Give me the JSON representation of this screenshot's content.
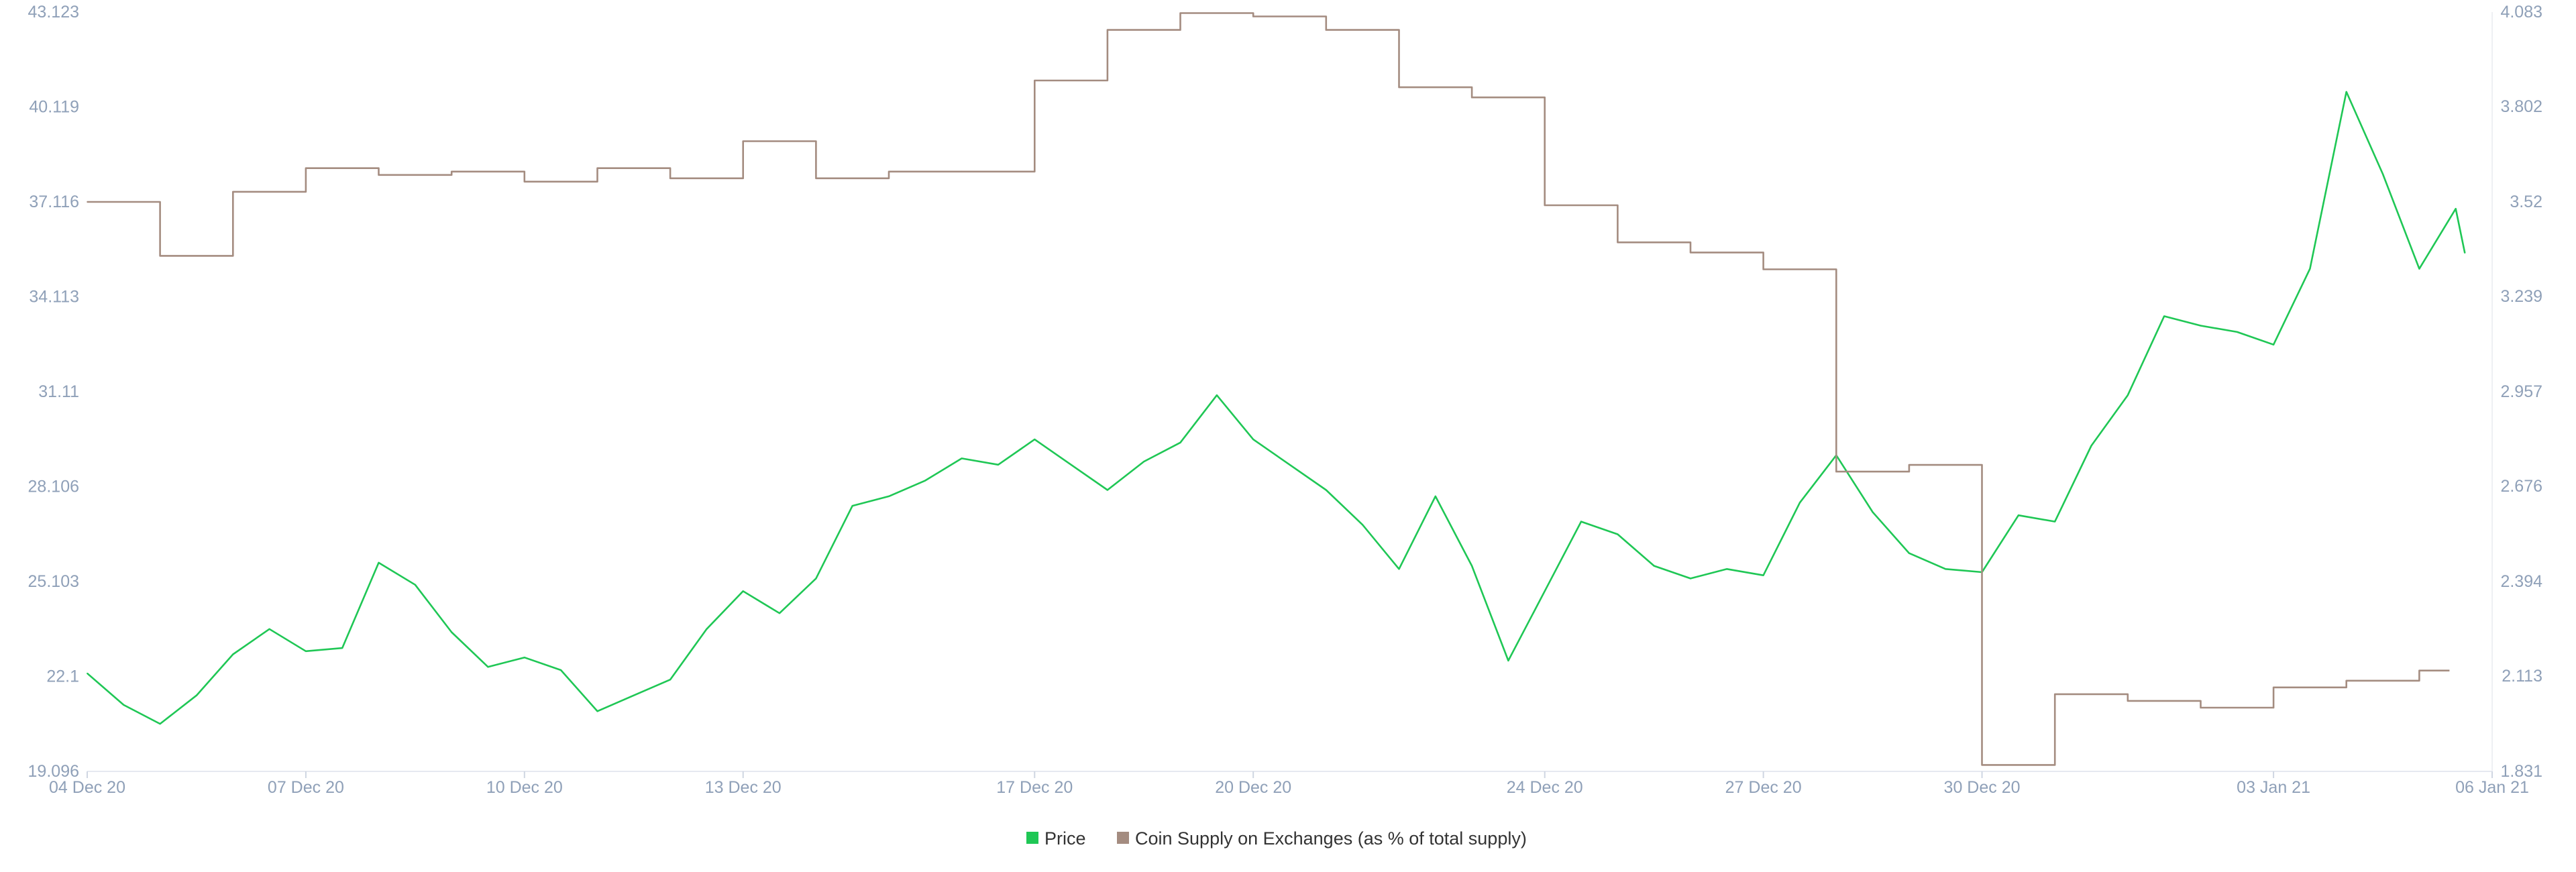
{
  "chart_data": {
    "type": "line",
    "title": "",
    "grid": false,
    "legend_position": "bottom-center",
    "x_axis": {
      "ticks": [
        "04 Dec 20",
        "07 Dec 20",
        "10 Dec 20",
        "13 Dec 20",
        "17 Dec 20",
        "20 Dec 20",
        "24 Dec 20",
        "27 Dec 20",
        "30 Dec 20",
        "03 Jan 21",
        "06 Jan 21"
      ],
      "range": [
        "2020-12-04",
        "2021-01-06"
      ]
    },
    "y_left": {
      "ticks": [
        "43.123",
        "40.119",
        "37.116",
        "34.113",
        "31.11",
        "28.106",
        "25.103",
        "22.1",
        "19.096"
      ],
      "range": [
        19.096,
        43.123
      ]
    },
    "y_right": {
      "ticks": [
        "4.083",
        "3.802",
        "3.52",
        "3.239",
        "2.957",
        "2.676",
        "2.394",
        "2.113",
        "1.831"
      ],
      "range": [
        1.831,
        4.083
      ]
    },
    "series": [
      {
        "name": "Price",
        "axis": "left",
        "color": "#1fc755",
        "points": [
          [
            "2020-12-04",
            22.2
          ],
          [
            "2020-12-04T12",
            21.2
          ],
          [
            "2020-12-05",
            20.6
          ],
          [
            "2020-12-05T12",
            21.5
          ],
          [
            "2020-12-06",
            22.8
          ],
          [
            "2020-12-06T12",
            23.6
          ],
          [
            "2020-12-07",
            22.9
          ],
          [
            "2020-12-07T12",
            23.0
          ],
          [
            "2020-12-08",
            25.7
          ],
          [
            "2020-12-08T12",
            25.0
          ],
          [
            "2020-12-09",
            23.5
          ],
          [
            "2020-12-09T12",
            22.4
          ],
          [
            "2020-12-10",
            22.7
          ],
          [
            "2020-12-10T12",
            22.3
          ],
          [
            "2020-12-11",
            21.0
          ],
          [
            "2020-12-11T12",
            21.5
          ],
          [
            "2020-12-12",
            22.0
          ],
          [
            "2020-12-12T12",
            23.6
          ],
          [
            "2020-12-13",
            24.8
          ],
          [
            "2020-12-13T12",
            24.1
          ],
          [
            "2020-12-14",
            25.2
          ],
          [
            "2020-12-14T12",
            27.5
          ],
          [
            "2020-12-15",
            27.8
          ],
          [
            "2020-12-15T12",
            28.3
          ],
          [
            "2020-12-16",
            29.0
          ],
          [
            "2020-12-16T12",
            28.8
          ],
          [
            "2020-12-17",
            29.6
          ],
          [
            "2020-12-17T12",
            28.8
          ],
          [
            "2020-12-18",
            28.0
          ],
          [
            "2020-12-18T12",
            28.9
          ],
          [
            "2020-12-19",
            29.5
          ],
          [
            "2020-12-19T12",
            31.0
          ],
          [
            "2020-12-20",
            29.6
          ],
          [
            "2020-12-20T12",
            28.8
          ],
          [
            "2020-12-21",
            28.0
          ],
          [
            "2020-12-21T12",
            26.9
          ],
          [
            "2020-12-22",
            25.5
          ],
          [
            "2020-12-22T12",
            27.8
          ],
          [
            "2020-12-23",
            25.6
          ],
          [
            "2020-12-23T12",
            22.6
          ],
          [
            "2020-12-24",
            24.8
          ],
          [
            "2020-12-24T12",
            27.0
          ],
          [
            "2020-12-25",
            26.6
          ],
          [
            "2020-12-25T12",
            25.6
          ],
          [
            "2020-12-26",
            25.2
          ],
          [
            "2020-12-26T12",
            25.5
          ],
          [
            "2020-12-27",
            25.3
          ],
          [
            "2020-12-27T12",
            27.6
          ],
          [
            "2020-12-28",
            29.1
          ],
          [
            "2020-12-28T12",
            27.3
          ],
          [
            "2020-12-29",
            26.0
          ],
          [
            "2020-12-29T12",
            25.5
          ],
          [
            "2020-12-30",
            25.4
          ],
          [
            "2020-12-30T12",
            27.2
          ],
          [
            "2020-12-31",
            27.0
          ],
          [
            "2020-12-31T12",
            29.4
          ],
          [
            "2021-01-01",
            31.0
          ],
          [
            "2021-01-01T12",
            33.5
          ],
          [
            "2021-01-02",
            33.2
          ],
          [
            "2021-01-02T12",
            33.0
          ],
          [
            "2021-01-03",
            32.6
          ],
          [
            "2021-01-03T12",
            35.0
          ],
          [
            "2021-01-04",
            40.6
          ],
          [
            "2021-01-04T12",
            38.0
          ],
          [
            "2021-01-05",
            35.0
          ],
          [
            "2021-01-05T12",
            36.9
          ],
          [
            "2021-01-05T15",
            35.5
          ]
        ]
      },
      {
        "name": "Coin Supply on Exchanges (as % of total supply)",
        "axis": "right",
        "color": "#a48c80",
        "points": [
          [
            "2020-12-04",
            3.52
          ],
          [
            "2020-12-05",
            3.36
          ],
          [
            "2020-12-06",
            3.55
          ],
          [
            "2020-12-07",
            3.62
          ],
          [
            "2020-12-08",
            3.6
          ],
          [
            "2020-12-09",
            3.61
          ],
          [
            "2020-12-10",
            3.58
          ],
          [
            "2020-12-11",
            3.62
          ],
          [
            "2020-12-12",
            3.59
          ],
          [
            "2020-12-13",
            3.7
          ],
          [
            "2020-12-14",
            3.59
          ],
          [
            "2020-12-15",
            3.61
          ],
          [
            "2020-12-16",
            3.61
          ],
          [
            "2020-12-17",
            3.88
          ],
          [
            "2020-12-18",
            4.03
          ],
          [
            "2020-12-19",
            4.08
          ],
          [
            "2020-12-20",
            4.07
          ],
          [
            "2020-12-21",
            4.03
          ],
          [
            "2020-12-22",
            3.86
          ],
          [
            "2020-12-23",
            3.83
          ],
          [
            "2020-12-24",
            3.51
          ],
          [
            "2020-12-25",
            3.4
          ],
          [
            "2020-12-26",
            3.37
          ],
          [
            "2020-12-27",
            3.32
          ],
          [
            "2020-12-28",
            2.72
          ],
          [
            "2020-12-29",
            2.74
          ],
          [
            "2020-12-30",
            1.85
          ],
          [
            "2020-12-31",
            2.06
          ],
          [
            "2021-01-01",
            2.04
          ],
          [
            "2021-01-02",
            2.02
          ],
          [
            "2021-01-03",
            2.08
          ],
          [
            "2021-01-04",
            2.1
          ],
          [
            "2021-01-05",
            2.13
          ]
        ]
      }
    ]
  }
}
